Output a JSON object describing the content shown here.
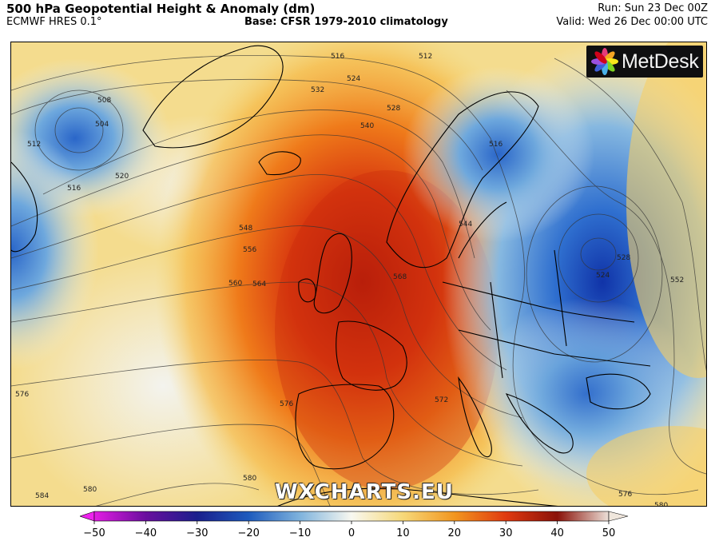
{
  "header": {
    "title": "500 hPa Geopotential Height & Anomaly (dm)",
    "model": "ECMWF HRES 0.1°",
    "base": "Base: CFSR 1979-2010 climatology",
    "run": "Run: Sun 23 Dec 00Z",
    "valid": "Valid: Wed 26 Dec 00:00 UTC"
  },
  "logo": {
    "text": "MetDesk"
  },
  "watermark": "WXCHARTS.EU",
  "contour_labels": [
    "504",
    "508",
    "512",
    "516",
    "520",
    "524",
    "528",
    "532",
    "540",
    "544",
    "548",
    "552",
    "556",
    "560",
    "564",
    "568",
    "572",
    "576",
    "580",
    "584"
  ],
  "colorbar": {
    "ticks": [
      "−50",
      "−40",
      "−30",
      "−20",
      "−10",
      "0",
      "10",
      "20",
      "30",
      "40",
      "50"
    ],
    "min": -50,
    "max": 50,
    "colors": {
      "-50": "#e31ce3",
      "-40": "#6a0f9e",
      "-30": "#1a1f8c",
      "-20": "#1e5bbd",
      "-10": "#7fb3dd",
      "0": "#f8f8f0",
      "10": "#f6d879",
      "20": "#f2961f",
      "30": "#e03a10",
      "40": "#8a1108",
      "50": "#ece0d8"
    }
  },
  "map": {
    "ocean_color": "#f3e0a0",
    "land_border_color": "#000000"
  }
}
